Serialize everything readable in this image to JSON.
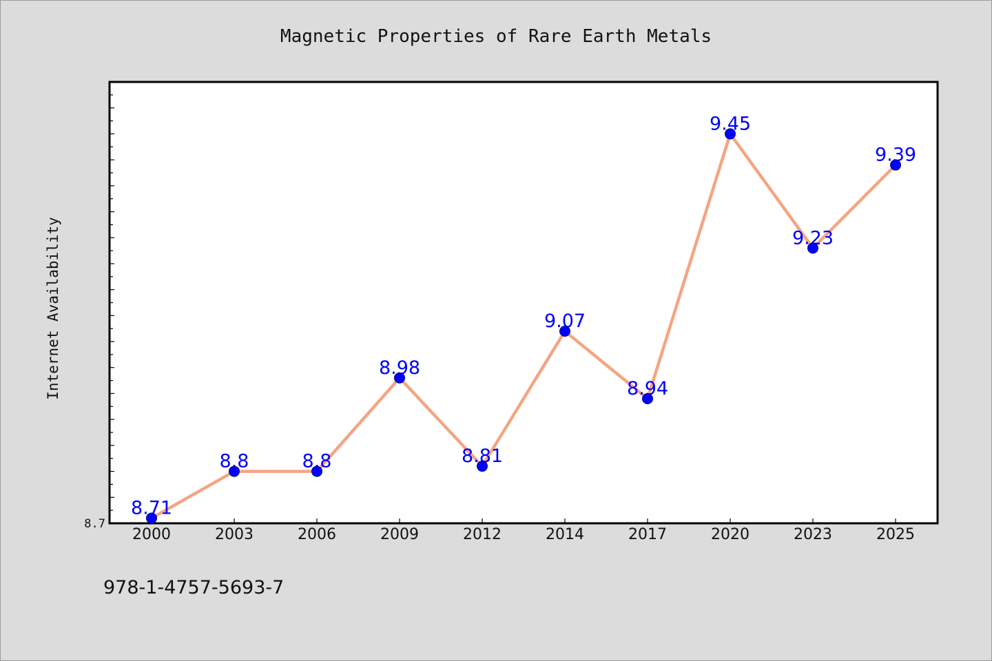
{
  "chart_data": {
    "type": "line",
    "title": "Magnetic Properties of Rare Earth Metals",
    "xlabel": "",
    "ylabel": "Internet Availability",
    "categories": [
      "2000",
      "2003",
      "2006",
      "2009",
      "2012",
      "2014",
      "2017",
      "2020",
      "2023",
      "2025"
    ],
    "series": [
      {
        "values": [
          8.71,
          8.8,
          8.8,
          8.98,
          8.81,
          9.07,
          8.94,
          9.45,
          9.23,
          9.39
        ],
        "labels": [
          "8.71",
          "8.8",
          "8.8",
          "8.98",
          "8.81",
          "9.07",
          "8.94",
          "9.45",
          "9.23",
          "9.39"
        ]
      }
    ],
    "yticks": [
      {
        "value": 8.7,
        "label": "8.7"
      }
    ],
    "ylim": [
      8.7,
      9.55
    ],
    "grid": false,
    "colors": {
      "line": "#f4a582",
      "marker": "#0000ff",
      "label": "#0000ff",
      "background": "#dcdcdc",
      "plot_background": "#ffffff"
    }
  },
  "footer": {
    "isbn": "978-1-4757-5693-7"
  }
}
